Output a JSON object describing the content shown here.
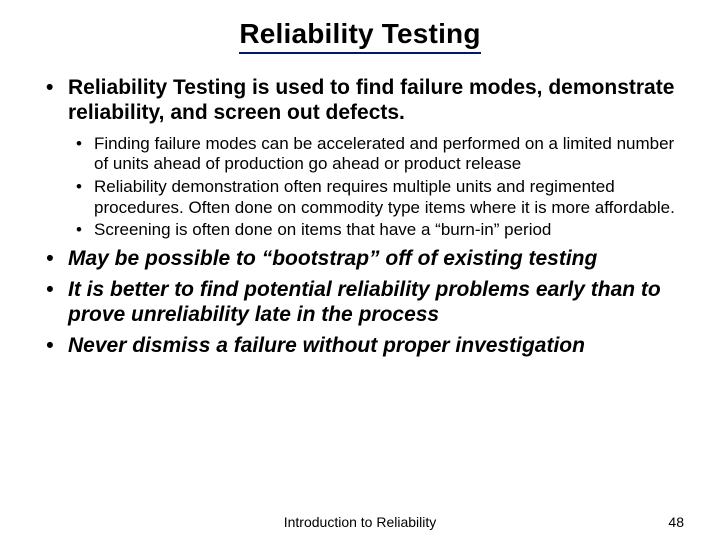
{
  "title": "Reliability Testing",
  "title_underline_color": "#001a66",
  "title_fontsize_pt": 28,
  "title_fontweight": "bold",
  "body_font_family": "Arial",
  "background_color": "#ffffff",
  "text_color": "#000000",
  "bullets_top": [
    {
      "text": "Reliability Testing is used to find failure modes, demonstrate reliability, and screen out defects.",
      "fontsize_pt": 21,
      "fontweight": "bold",
      "children": [
        "Finding failure modes can be accelerated and performed on a limited number of units ahead of production go ahead or product release",
        "Reliability demonstration often requires multiple units and regimented procedures.  Often done on commodity type items where it is more affordable.",
        "Screening is often done on items that have a “burn-in” period"
      ],
      "children_fontsize_pt": 17,
      "children_fontweight": "normal"
    }
  ],
  "bullets_bottom": [
    "May be possible to “bootstrap” off of existing testing",
    "It is better to find potential reliability problems early than to prove unreliability late in the process",
    "Never dismiss a failure without proper investigation"
  ],
  "bullets_bottom_style": {
    "fontsize_pt": 21,
    "fontweight": "bold",
    "fontstyle": "italic"
  },
  "footer": {
    "center": "Introduction to Reliability",
    "page": "48",
    "fontsize_pt": 14
  }
}
